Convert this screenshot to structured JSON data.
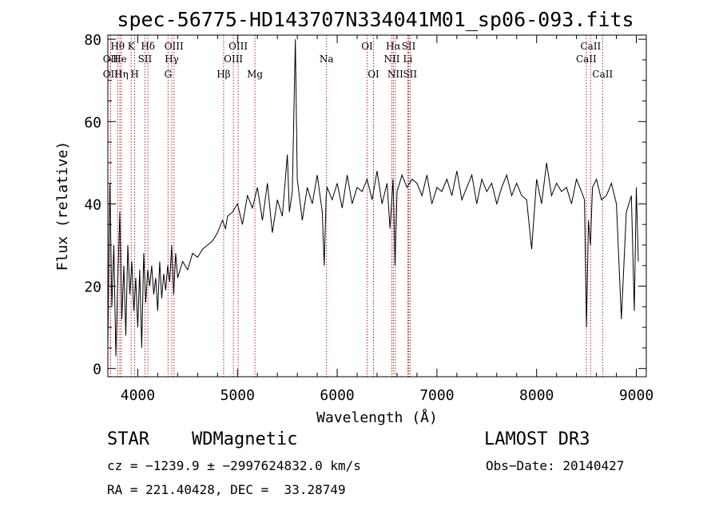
{
  "chart_data": {
    "type": "line",
    "title": "spec-56775-HD143707N334041M01_sp06-093.fits",
    "xlabel": "Wavelength (Å)",
    "ylabel": "Flux (relative)",
    "xlim": [
      3700,
      9100
    ],
    "ylim": [
      -2,
      81
    ],
    "xticks": [
      4000,
      5000,
      6000,
      7000,
      8000,
      9000
    ],
    "yticks": [
      0,
      20,
      40,
      60,
      80
    ],
    "series": [
      {
        "name": "flux",
        "x": [
          3700,
          3720,
          3740,
          3760,
          3780,
          3800,
          3820,
          3840,
          3860,
          3880,
          3900,
          3920,
          3940,
          3960,
          3980,
          4000,
          4020,
          4040,
          4060,
          4080,
          4100,
          4120,
          4140,
          4160,
          4180,
          4200,
          4220,
          4240,
          4260,
          4280,
          4300,
          4320,
          4340,
          4360,
          4380,
          4400,
          4450,
          4500,
          4550,
          4600,
          4650,
          4700,
          4750,
          4800,
          4850,
          4880,
          4900,
          4950,
          5000,
          5050,
          5100,
          5150,
          5200,
          5250,
          5300,
          5350,
          5400,
          5450,
          5500,
          5520,
          5550,
          5580,
          5600,
          5650,
          5700,
          5750,
          5800,
          5850,
          5870,
          5890,
          5900,
          5950,
          6000,
          6050,
          6100,
          6150,
          6200,
          6250,
          6300,
          6350,
          6400,
          6450,
          6500,
          6530,
          6560,
          6580,
          6600,
          6650,
          6700,
          6750,
          6800,
          6850,
          6900,
          6950,
          7000,
          7050,
          7100,
          7150,
          7200,
          7250,
          7300,
          7350,
          7400,
          7450,
          7500,
          7550,
          7600,
          7650,
          7700,
          7750,
          7800,
          7850,
          7900,
          7950,
          8000,
          8050,
          8100,
          8150,
          8200,
          8250,
          8300,
          8350,
          8400,
          8450,
          8480,
          8500,
          8520,
          8540,
          8560,
          8600,
          8650,
          8700,
          8750,
          8800,
          8850,
          8900,
          8950,
          8980,
          9000,
          9020
        ],
        "values": [
          5,
          45,
          15,
          30,
          3,
          22,
          38,
          12,
          25,
          8,
          30,
          18,
          26,
          14,
          22,
          10,
          24,
          5,
          28,
          16,
          24,
          20,
          25,
          18,
          22,
          14,
          26,
          17,
          23,
          19,
          25,
          21,
          30,
          18,
          28,
          22,
          26,
          24,
          28,
          27,
          29,
          30,
          31,
          33,
          36,
          34,
          37,
          38,
          40,
          35,
          42,
          39,
          44,
          36,
          45,
          33,
          41,
          37,
          52,
          38,
          43,
          80,
          46,
          36,
          44,
          40,
          47,
          38,
          25,
          42,
          44,
          41,
          45,
          39,
          47,
          40,
          44,
          43,
          46,
          41,
          48,
          40,
          45,
          34,
          46,
          25,
          43,
          47,
          44,
          46,
          45,
          42,
          47,
          40,
          44,
          43,
          46,
          42,
          48,
          41,
          44,
          47,
          40,
          46,
          43,
          45,
          40,
          44,
          47,
          42,
          45,
          42,
          41,
          29,
          46,
          40,
          50,
          42,
          45,
          43,
          44,
          40,
          46,
          43,
          41,
          10,
          36,
          30,
          44,
          46,
          41,
          42,
          45,
          40,
          12,
          38,
          42,
          14,
          44,
          26
        ]
      }
    ],
    "line_marks": [
      {
        "label": "Hθ",
        "x": 3798,
        "row": 1
      },
      {
        "label": "OII",
        "x": 3727,
        "row": 2
      },
      {
        "label": "OII",
        "x": 3727,
        "row": 3
      },
      {
        "label": "He",
        "x": 3820,
        "row": 2
      },
      {
        "label": "Hη",
        "x": 3835,
        "row": 3
      },
      {
        "label": "K",
        "x": 3934,
        "row": 1
      },
      {
        "label": "H",
        "x": 3969,
        "row": 3
      },
      {
        "label": "SII",
        "x": 4072,
        "row": 2
      },
      {
        "label": "Hδ",
        "x": 4102,
        "row": 1
      },
      {
        "label": "OIII",
        "x": 4363,
        "row": 1
      },
      {
        "label": "Hγ",
        "x": 4341,
        "row": 2
      },
      {
        "label": "G",
        "x": 4304,
        "row": 3
      },
      {
        "label": "OIII",
        "x": 5007,
        "row": 1
      },
      {
        "label": "OIII",
        "x": 4959,
        "row": 2
      },
      {
        "label": "Hβ",
        "x": 4861,
        "row": 3
      },
      {
        "label": "Mg",
        "x": 5175,
        "row": 3
      },
      {
        "label": "Na",
        "x": 5893,
        "row": 2
      },
      {
        "label": "OI",
        "x": 6300,
        "row": 1
      },
      {
        "label": "OI",
        "x": 6364,
        "row": 3
      },
      {
        "label": "Hα",
        "x": 6563,
        "row": 1
      },
      {
        "label": "NII",
        "x": 6548,
        "row": 2
      },
      {
        "label": "NII",
        "x": 6583,
        "row": 3
      },
      {
        "label": "SII",
        "x": 6717,
        "row": 1
      },
      {
        "label": "Li",
        "x": 6708,
        "row": 2
      },
      {
        "label": "SII",
        "x": 6731,
        "row": 3
      },
      {
        "label": "CaII",
        "x": 8542,
        "row": 1
      },
      {
        "label": "CaII",
        "x": 8498,
        "row": 2
      },
      {
        "label": "CaII",
        "x": 8662,
        "row": 3
      }
    ]
  },
  "info": {
    "object_class": "STAR",
    "subclass": "WDMagnetic",
    "survey": "LAMOST DR3",
    "cz": "cz = −1239.9 ± −2997624832.0 km/s",
    "obs_date": "Obs−Date: 20140427",
    "radec": "RA = 221.40428, DEC =  33.28749"
  }
}
